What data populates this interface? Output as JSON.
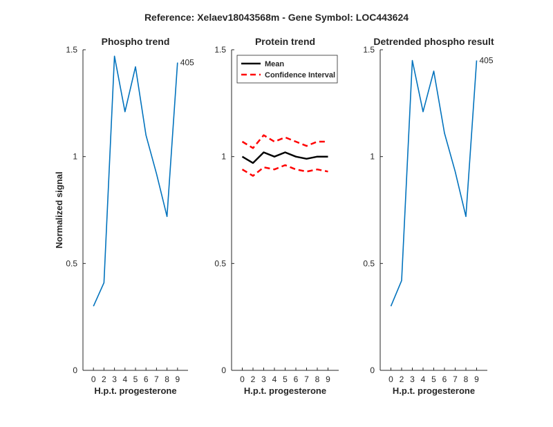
{
  "figure": {
    "suptitle": "Reference:  Xelaev18043568m - Gene Symbol:  LOC443624"
  },
  "chart_data": [
    {
      "type": "line",
      "title": "Phospho trend",
      "xlabel": "H.p.t. progesterone",
      "ylabel": "Normalized signal",
      "x": [
        0,
        2,
        3,
        4,
        5,
        6,
        7,
        8,
        9
      ],
      "ylim": [
        0,
        1.5
      ],
      "yticks": [
        0,
        0.5,
        1,
        1.5
      ],
      "ytick_labels": [
        "0",
        "0.5",
        "1",
        "1.5"
      ],
      "series": [
        {
          "values": [
            0.3,
            0.41,
            1.47,
            1.21,
            1.42,
            1.1,
            0.92,
            0.72,
            1.44
          ],
          "color": "#0072BD",
          "style": "solid"
        }
      ],
      "annotation": "405",
      "grid": false
    },
    {
      "type": "line",
      "title": "Protein trend",
      "xlabel": "H.p.t. progesterone",
      "ylabel": "",
      "x": [
        0,
        2,
        3,
        4,
        5,
        6,
        7,
        8,
        9
      ],
      "ylim": [
        0,
        1.5
      ],
      "yticks": [
        0,
        0.5,
        1,
        1.5
      ],
      "ytick_labels": [
        "0",
        "0.5",
        "1",
        "1.5"
      ],
      "legend_position": "top-right",
      "series": [
        {
          "name": "Mean",
          "values": [
            1.0,
            0.97,
            1.02,
            1.0,
            1.02,
            1.0,
            0.99,
            1.0,
            1.0
          ],
          "color": "#000000",
          "style": "solid"
        },
        {
          "name": "Confidence Interval",
          "values": [
            1.07,
            1.04,
            1.1,
            1.07,
            1.09,
            1.07,
            1.05,
            1.07,
            1.07
          ],
          "color": "#FF0000",
          "style": "dashed"
        },
        {
          "values": [
            0.94,
            0.91,
            0.95,
            0.94,
            0.96,
            0.94,
            0.93,
            0.94,
            0.93
          ],
          "color": "#FF0000",
          "style": "dashed"
        }
      ],
      "grid": false
    },
    {
      "type": "line",
      "title": "Detrended phospho result",
      "xlabel": "H.p.t. progesterone",
      "ylabel": "",
      "x": [
        0,
        2,
        3,
        4,
        5,
        6,
        7,
        8,
        9
      ],
      "ylim": [
        0,
        1.5
      ],
      "yticks": [
        0,
        0.5,
        1,
        1.5
      ],
      "ytick_labels": [
        "0",
        "0.5",
        "1",
        "1.5"
      ],
      "series": [
        {
          "values": [
            0.3,
            0.42,
            1.45,
            1.21,
            1.4,
            1.11,
            0.93,
            0.72,
            1.45
          ],
          "color": "#0072BD",
          "style": "solid"
        }
      ],
      "annotation": "405",
      "grid": false
    }
  ]
}
